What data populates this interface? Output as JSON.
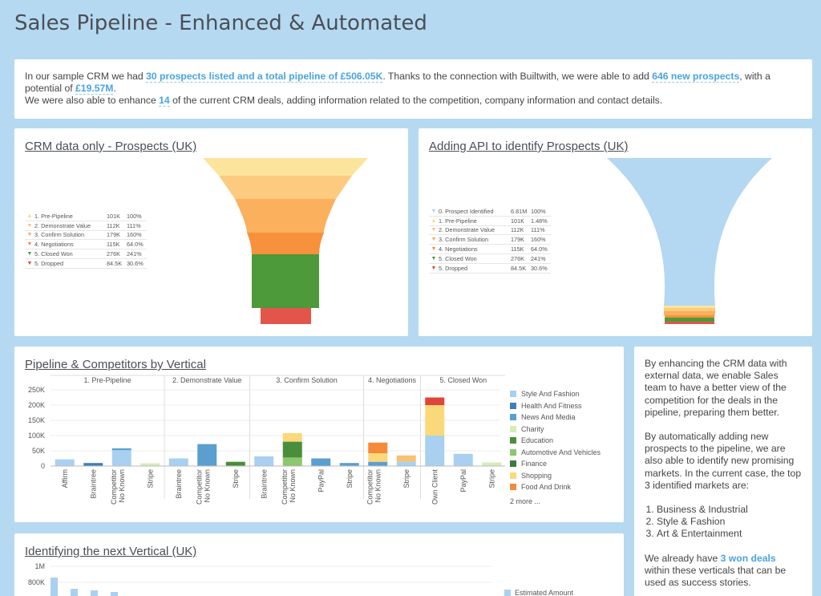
{
  "page_title": "Sales Pipeline - Enhanced & Automated",
  "intro": {
    "line1_a": "In our sample CRM we had ",
    "line1_hl": "30 prospects listed and a total pipeline of £506.05K",
    "line1_b": ". Thanks to the connection with Builtwith, we were able to add ",
    "line1_hl2": "646 new prospects",
    "line1_c": ", with a potential of ",
    "line1_hl3": "£19.57M",
    "line1_d": ".",
    "line2_a": "We were also able to enhance ",
    "line2_hl": "14",
    "line2_b": " of the current CRM deals, adding information related to the competition, company information and contact details."
  },
  "funnel1": {
    "title": "CRM data only - Prospects (UK)",
    "rows": [
      {
        "icon": "▲",
        "color": "#f7dc7a",
        "name": "1. Pre-Pipeline",
        "v1": "101K",
        "v2": "100%"
      },
      {
        "icon": "▼",
        "color": "#fbc070",
        "name": "2. Demonstrate Value",
        "v1": "112K",
        "v2": "111%"
      },
      {
        "icon": "▼",
        "color": "#f9a85a",
        "name": "3. Confirm Solution",
        "v1": "179K",
        "v2": "160%"
      },
      {
        "icon": "▼",
        "color": "#f58a3a",
        "name": "4. Negotiations",
        "v1": "115K",
        "v2": "64.0%"
      },
      {
        "icon": "▼",
        "color": "#4c9a3a",
        "name": "5. Closed Won",
        "v1": "276K",
        "v2": "241%"
      },
      {
        "icon": "▼",
        "color": "#e0453a",
        "name": "5. Dropped",
        "v1": "84.5K",
        "v2": "30.6%"
      }
    ]
  },
  "funnel2": {
    "title": "Adding API to identify Prospects (UK)",
    "rows": [
      {
        "icon": "▼",
        "color": "#a9d0f0",
        "name": "0. Prospect Identified",
        "v1": "6.81M",
        "v2": "100%"
      },
      {
        "icon": "▲",
        "color": "#f7dc7a",
        "name": "1. Pre-Pipeline",
        "v1": "101K",
        "v2": "1.48%"
      },
      {
        "icon": "▼",
        "color": "#fbc070",
        "name": "2. Demonstrate Value",
        "v1": "112K",
        "v2": "111%"
      },
      {
        "icon": "▼",
        "color": "#f9a85a",
        "name": "3. Confirm Solution",
        "v1": "179K",
        "v2": "160%"
      },
      {
        "icon": "▼",
        "color": "#f58a3a",
        "name": "4. Negotiations",
        "v1": "115K",
        "v2": "64.0%"
      },
      {
        "icon": "▼",
        "color": "#4c9a3a",
        "name": "5. Closed Won",
        "v1": "276K",
        "v2": "241%"
      },
      {
        "icon": "▼",
        "color": "#e0453a",
        "name": "5. Dropped",
        "v1": "84.5K",
        "v2": "30.6%"
      }
    ]
  },
  "bar_chart": {
    "title": "Pipeline & Competitors by Vertical",
    "legend": [
      {
        "name": "Style And Fashion",
        "color": "#a9d0f0"
      },
      {
        "name": "Health And Fitness",
        "color": "#3d7fb8"
      },
      {
        "name": "News And Media",
        "color": "#5a9fd0"
      },
      {
        "name": "Charity",
        "color": "#d6ecb8"
      },
      {
        "name": "Education",
        "color": "#4a8e3c"
      },
      {
        "name": "Automotive And Vehicles",
        "color": "#8cc66e"
      },
      {
        "name": "Finance",
        "color": "#3d7a40"
      },
      {
        "name": "Shopping",
        "color": "#fbd97a"
      },
      {
        "name": "Food And Drink",
        "color": "#f58a3a"
      }
    ],
    "legend_more": "2 more ..."
  },
  "chart_data": [
    {
      "type": "bar",
      "title": "Pipeline & Competitors by Vertical",
      "ylim": [
        0,
        250000
      ],
      "yticks": [
        "250K",
        "200K",
        "150K",
        "100K",
        "50K",
        "0"
      ],
      "groups": [
        {
          "label": "1. Pre-Pipeline",
          "bars": [
            {
              "cat": "Affirm",
              "segments": [
                {
                  "v": 22000,
                  "c": "#a9d0f0"
                }
              ]
            },
            {
              "cat": "Braintree",
              "segments": [
                {
                  "v": 10000,
                  "c": "#3d7fb8"
                }
              ]
            },
            {
              "cat": "No Known Competitor",
              "segments": [
                {
                  "v": 52000,
                  "c": "#a9d0f0"
                },
                {
                  "v": 6000,
                  "c": "#5a9fd0"
                }
              ]
            },
            {
              "cat": "Stripe",
              "segments": [
                {
                  "v": 9000,
                  "c": "#d6ecb8"
                }
              ]
            }
          ]
        },
        {
          "label": "2. Demonstrate Value",
          "bars": [
            {
              "cat": "Braintree",
              "segments": [
                {
                  "v": 25000,
                  "c": "#a9d0f0"
                }
              ]
            },
            {
              "cat": "No Known Competitor",
              "segments": [
                {
                  "v": 72000,
                  "c": "#5a9fd0"
                }
              ]
            },
            {
              "cat": "Stripe",
              "segments": [
                {
                  "v": 14000,
                  "c": "#4a8e3c"
                }
              ]
            }
          ]
        },
        {
          "label": "3. Confirm Solution",
          "bars": [
            {
              "cat": "Braintree",
              "segments": [
                {
                  "v": 32000,
                  "c": "#a9d0f0"
                }
              ]
            },
            {
              "cat": "No Known Competitor",
              "segments": [
                {
                  "v": 28000,
                  "c": "#8cc66e"
                },
                {
                  "v": 52000,
                  "c": "#4a8e3c"
                },
                {
                  "v": 28000,
                  "c": "#fbd97a"
                }
              ]
            },
            {
              "cat": "PayPal",
              "segments": [
                {
                  "v": 25000,
                  "c": "#5a9fd0"
                }
              ]
            },
            {
              "cat": "Stripe",
              "segments": [
                {
                  "v": 10000,
                  "c": "#5a9fd0"
                }
              ]
            }
          ]
        },
        {
          "label": "4. Negotiations",
          "bars": [
            {
              "cat": "No Known Competitor",
              "segments": [
                {
                  "v": 14000,
                  "c": "#5a9fd0"
                },
                {
                  "v": 28000,
                  "c": "#fbd97a"
                },
                {
                  "v": 35000,
                  "c": "#f58a3a"
                }
              ]
            },
            {
              "cat": "Stripe",
              "segments": [
                {
                  "v": 15000,
                  "c": "#a9d0f0"
                },
                {
                  "v": 20000,
                  "c": "#fbc070"
                }
              ]
            }
          ]
        },
        {
          "label": "5. Closed Won",
          "bars": [
            {
              "cat": "Own Client",
              "segments": [
                {
                  "v": 100000,
                  "c": "#a9d0f0"
                },
                {
                  "v": 100000,
                  "c": "#fbd97a"
                },
                {
                  "v": 25000,
                  "c": "#e0453a"
                }
              ]
            },
            {
              "cat": "PayPal",
              "segments": [
                {
                  "v": 40000,
                  "c": "#a9d0f0"
                }
              ]
            },
            {
              "cat": "Stripe",
              "segments": [
                {
                  "v": 12000,
                  "c": "#d6ecb8"
                }
              ]
            }
          ]
        }
      ]
    },
    {
      "type": "bar",
      "title": "Identifying the next Vertical (UK)",
      "yticks": [
        "1M",
        "800K"
      ],
      "ylim": [
        0,
        1000000
      ],
      "values": [
        860000,
        720000,
        700000,
        680000
      ],
      "legend": "Estimated Amount"
    }
  ],
  "bottom": {
    "title": "Identifying the next Vertical (UK)",
    "legend": "Estimated Amount"
  },
  "side": {
    "p1": "By enhancing the CRM data with external data, we enable Sales team to have a better view of the competition for the deals in the pipeline, preparing them better.",
    "p2": "By automatically adding new prospects to the pipeline, we are also able to identify new promising markets. In the current case, the top 3 identified markets are:",
    "list": [
      "Business & Industrial",
      "Style & Fashion",
      "Art & Entertainment"
    ],
    "p3_a": "We already have ",
    "p3_hl": "3 won deals",
    "p3_b": " within these verticals that can be used as success stories."
  }
}
